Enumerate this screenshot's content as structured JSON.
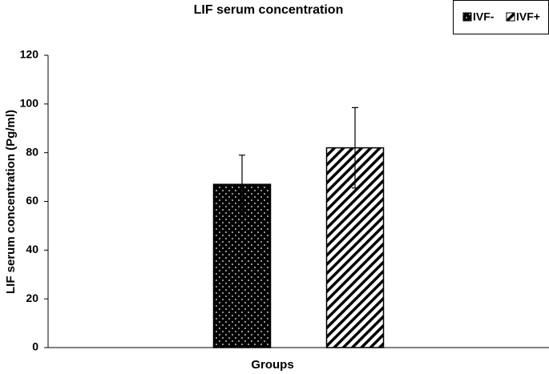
{
  "chart_data": {
    "type": "bar",
    "title": "LIF serum concentration",
    "x_label": "Groups",
    "y_label": "LIF serum concentration (Pg/ml)",
    "categories": [
      null
    ],
    "series": [
      {
        "name": "IVF-",
        "color": "#000000",
        "pattern": "dots",
        "values": [
          67
        ],
        "errors": [
          12
        ]
      },
      {
        "name": "IVF+",
        "color": "#000000",
        "pattern": "hatch",
        "values": [
          82
        ],
        "errors": [
          16.5
        ]
      }
    ],
    "ylim": [
      0,
      120
    ],
    "yticks": [
      0,
      20,
      40,
      60,
      80,
      100,
      120
    ],
    "grid": false,
    "legend": "top-right"
  }
}
